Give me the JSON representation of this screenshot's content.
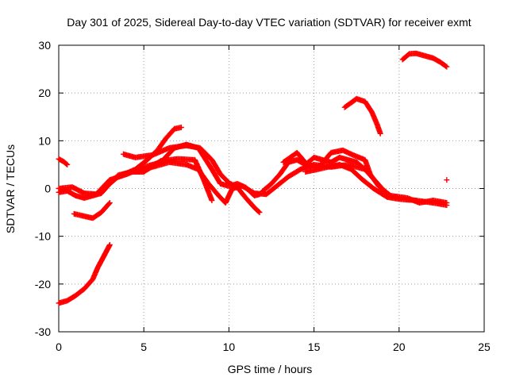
{
  "chart_data": {
    "type": "scatter",
    "title": "Day 301 of 2025, Sidereal Day-to-day VTEC variation (SDTVAR) for receiver exmt",
    "xlabel": "GPS time / hours",
    "ylabel": "SDTVAR / TECUs",
    "xlim": [
      0,
      25
    ],
    "ylim": [
      -30,
      30
    ],
    "xticks": [
      0,
      5,
      10,
      15,
      20,
      25
    ],
    "yticks": [
      -30,
      -20,
      -10,
      0,
      10,
      20,
      30
    ],
    "grid": true,
    "marker": "+",
    "color": "#ff0000",
    "series": [
      {
        "name": "s1",
        "points": [
          [
            0,
            6.2
          ],
          [
            0.3,
            5.6
          ],
          [
            0.5,
            5.0
          ]
        ]
      },
      {
        "name": "s2",
        "points": [
          [
            0,
            -24
          ],
          [
            0.5,
            -23.5
          ],
          [
            1,
            -22.4
          ],
          [
            1.5,
            -21
          ],
          [
            2,
            -19
          ],
          [
            2.3,
            -16.5
          ],
          [
            2.6,
            -14.5
          ],
          [
            3.0,
            -11.8
          ]
        ]
      },
      {
        "name": "s3",
        "points": [
          [
            0,
            -0.8
          ],
          [
            0.5,
            -0.5
          ],
          [
            1,
            -1.5
          ],
          [
            1.5,
            -2
          ],
          [
            2,
            -1.5
          ],
          [
            2.5,
            -1
          ],
          [
            3,
            1
          ],
          [
            3.5,
            2.8
          ],
          [
            4.3,
            3.5
          ],
          [
            5,
            3.5
          ],
          [
            6,
            5.8
          ],
          [
            7,
            6.2
          ],
          [
            8,
            6
          ],
          [
            8.5,
            2
          ],
          [
            9,
            -2.5
          ]
        ]
      },
      {
        "name": "s4",
        "points": [
          [
            0,
            0
          ],
          [
            0.8,
            0.3
          ],
          [
            1.5,
            -1
          ],
          [
            2.2,
            -1.2
          ],
          [
            3,
            1.8
          ],
          [
            4,
            3
          ],
          [
            5,
            4.5
          ],
          [
            6,
            5.5
          ],
          [
            6.8,
            8.5
          ],
          [
            7.5,
            9.2
          ],
          [
            8.2,
            8.5
          ],
          [
            9,
            4
          ],
          [
            9.5,
            1
          ],
          [
            10,
            0.5
          ],
          [
            10.5,
            1
          ],
          [
            11,
            0.2
          ],
          [
            11.5,
            -1.5
          ],
          [
            11.8,
            -1.2
          ]
        ]
      },
      {
        "name": "s5",
        "points": [
          [
            0.9,
            -5.3
          ],
          [
            1.5,
            -5.8
          ],
          [
            2,
            -6.2
          ],
          [
            2.5,
            -5
          ],
          [
            3,
            -3
          ]
        ]
      },
      {
        "name": "s6",
        "points": [
          [
            2.5,
            -0.5
          ],
          [
            3.5,
            2.5
          ],
          [
            4.5,
            4
          ],
          [
            5.2,
            6
          ],
          [
            5.8,
            8
          ],
          [
            6.3,
            10.5
          ],
          [
            6.8,
            12.5
          ],
          [
            7.2,
            12.8
          ]
        ]
      },
      {
        "name": "s7",
        "points": [
          [
            3.8,
            7.2
          ],
          [
            4.5,
            6.5
          ],
          [
            5.5,
            7
          ],
          [
            6.5,
            8.5
          ],
          [
            7.5,
            9
          ],
          [
            8.3,
            8.5
          ],
          [
            9,
            6
          ],
          [
            9.5,
            3
          ],
          [
            10,
            1.2
          ],
          [
            10.5,
            0.2
          ],
          [
            11,
            -2
          ],
          [
            11.5,
            -4
          ],
          [
            11.8,
            -5
          ]
        ]
      },
      {
        "name": "s8",
        "points": [
          [
            4.5,
            3.5
          ],
          [
            5.5,
            4.5
          ],
          [
            6.5,
            5.5
          ],
          [
            7.5,
            5
          ],
          [
            8.2,
            4
          ],
          [
            8.8,
            1
          ],
          [
            9.4,
            -1.5
          ],
          [
            9.8,
            -3
          ],
          [
            10.2,
            0
          ],
          [
            10.8,
            0.5
          ],
          [
            11.5,
            -1
          ],
          [
            12.2,
            -1.2
          ],
          [
            12.8,
            0.5
          ],
          [
            13.5,
            2.5
          ],
          [
            14.2,
            4
          ],
          [
            15,
            5
          ],
          [
            16,
            4.5
          ],
          [
            17,
            5
          ],
          [
            18,
            4
          ]
        ]
      },
      {
        "name": "s9",
        "points": [
          [
            12,
            -0.5
          ],
          [
            12.5,
            1
          ],
          [
            13,
            3
          ],
          [
            13.5,
            5.5
          ],
          [
            14,
            6
          ],
          [
            14.5,
            5
          ],
          [
            15,
            6.5
          ],
          [
            15.5,
            6
          ],
          [
            16,
            5.5
          ],
          [
            16.5,
            6.5
          ],
          [
            17,
            6
          ],
          [
            17.5,
            5.5
          ],
          [
            18,
            4
          ],
          [
            18.5,
            2
          ],
          [
            19,
            0
          ]
        ]
      },
      {
        "name": "s10",
        "points": [
          [
            13.2,
            5.5
          ],
          [
            14,
            7.5
          ],
          [
            14.6,
            5
          ],
          [
            15.3,
            4.5
          ],
          [
            16,
            7.5
          ],
          [
            16.7,
            8
          ],
          [
            17.3,
            7
          ],
          [
            18,
            6
          ],
          [
            18.3,
            3
          ],
          [
            18.8,
            0.5
          ],
          [
            19.5,
            -1.5
          ],
          [
            20.5,
            -2
          ],
          [
            21.2,
            -3
          ],
          [
            22,
            -2.5
          ],
          [
            22.8,
            -3
          ]
        ]
      },
      {
        "name": "s11",
        "points": [
          [
            14.5,
            3.5
          ],
          [
            15.2,
            4
          ],
          [
            15.8,
            4.5
          ],
          [
            16.5,
            5
          ],
          [
            17.2,
            4
          ],
          [
            17.8,
            2
          ],
          [
            18.5,
            0
          ],
          [
            19.3,
            -1.8
          ],
          [
            20,
            -2.2
          ],
          [
            21,
            -2.5
          ],
          [
            22,
            -3
          ],
          [
            22.8,
            -3.5
          ]
        ]
      },
      {
        "name": "s12",
        "points": [
          [
            16.8,
            17
          ],
          [
            17.2,
            18
          ],
          [
            17.5,
            18.8
          ],
          [
            18,
            18.2
          ],
          [
            18.4,
            16
          ],
          [
            18.7,
            13.5
          ],
          [
            18.9,
            11.5
          ]
        ]
      },
      {
        "name": "s13",
        "points": [
          [
            20.2,
            27
          ],
          [
            20.6,
            28.2
          ],
          [
            21.0,
            28.3
          ],
          [
            21.5,
            27.8
          ],
          [
            22.0,
            27.3
          ],
          [
            22.4,
            26.5
          ],
          [
            22.8,
            25.5
          ]
        ]
      },
      {
        "name": "s14",
        "points": [
          [
            22.8,
            1.8
          ]
        ]
      }
    ]
  }
}
